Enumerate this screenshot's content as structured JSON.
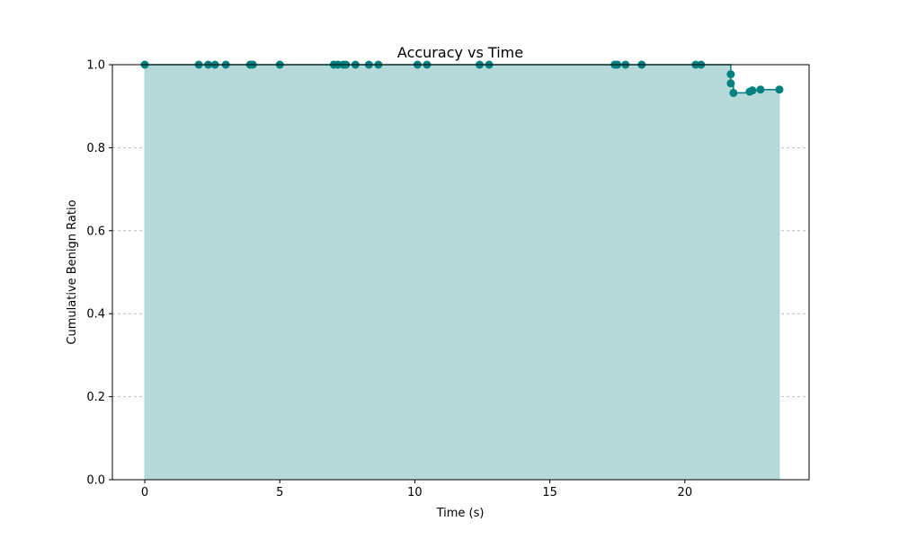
{
  "chart_data": {
    "type": "line",
    "title": "Accuracy vs Time",
    "xlabel": "Time (s)",
    "ylabel": "Cumulative Benign Ratio",
    "xlim": [
      -1.2,
      24.6
    ],
    "ylim": [
      0.0,
      1.0
    ],
    "xticks": [
      0,
      5,
      10,
      15,
      20
    ],
    "yticks": [
      0.0,
      0.2,
      0.4,
      0.6,
      0.8,
      1.0
    ],
    "xtick_labels": [
      "0",
      "5",
      "10",
      "15",
      "20"
    ],
    "ytick_labels": [
      "0.0",
      "0.2",
      "0.4",
      "0.6",
      "0.8",
      "1.0"
    ],
    "grid": true,
    "step": true,
    "fill_under": true,
    "colors": {
      "line": "#008080",
      "fill": "#b2d8d8"
    },
    "series": [
      {
        "x": [
          0.0,
          2.0,
          2.35,
          2.6,
          3.0,
          3.9,
          4.0,
          5.0,
          7.0,
          7.15,
          7.35,
          7.45,
          7.8,
          8.3,
          8.65,
          10.1,
          10.45,
          12.4,
          12.75,
          17.4,
          17.5,
          17.8,
          18.4,
          20.4,
          20.6,
          21.7,
          21.7,
          21.8,
          22.4,
          22.5,
          22.8,
          23.5
        ],
        "y": [
          1.0,
          1.0,
          1.0,
          1.0,
          1.0,
          1.0,
          1.0,
          1.0,
          1.0,
          1.0,
          1.0,
          1.0,
          1.0,
          1.0,
          1.0,
          1.0,
          1.0,
          1.0,
          1.0,
          1.0,
          1.0,
          1.0,
          1.0,
          1.0,
          1.0,
          0.977,
          0.955,
          0.932,
          0.935,
          0.938,
          0.94,
          0.94
        ]
      }
    ]
  }
}
